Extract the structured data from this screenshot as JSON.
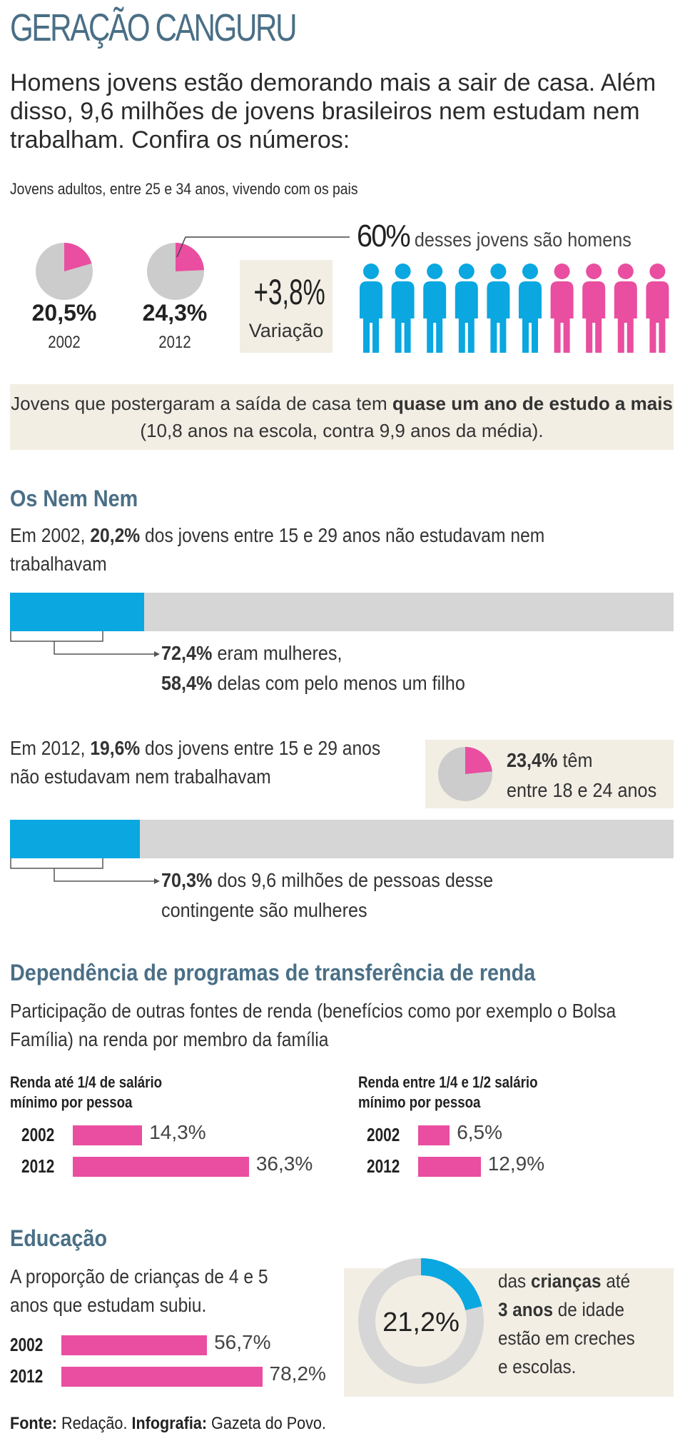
{
  "header": {
    "title": "GERAÇÃO CANGURU",
    "lead": "Homens jovens estão demorando mais a sair de casa. Além disso, 9,6 milhões de jovens brasileiros nem estudam nem trabalham. Confira os números:"
  },
  "living_with_parents": {
    "subtitle": "Jovens adultos, entre 25 e 34 anos, vivendo com os pais",
    "pie_2002": {
      "value": "20,5%",
      "year": "2002"
    },
    "pie_2012": {
      "value": "24,3%",
      "year": "2012"
    },
    "variation": {
      "value": "+3,8%",
      "label": "Variação"
    },
    "men_pct": "60%",
    "men_text": "desses jovens são homens"
  },
  "study_note": {
    "part1": "Jovens que postergaram a saída de casa tem ",
    "bold": "quase um ano de estudo a mais",
    "part2": " (10,8 anos na escola, contra 9,9 anos da média)."
  },
  "nem_nem": {
    "title": "Os Nem Nem",
    "s2002": {
      "pre": "Em 2002, ",
      "bold": "20,2%",
      "post": " dos jovens entre 15 e 29 anos não estudavam nem trabalhavam"
    },
    "note2002_a_bold": "72,4%",
    "note2002_a": " eram mulheres,",
    "note2002_b_bold": "58,4%",
    "note2002_b": " delas com pelo menos um filho",
    "s2012": {
      "pre": "Em 2012, ",
      "bold": "19,6%",
      "post": " dos jovens entre 15 e 29 anos não estudavam nem trabalhavam"
    },
    "age_pct": "23,4%",
    "age_text1": " têm",
    "age_text2": "entre 18 e 24 anos",
    "note2012_bold": "70,3%",
    "note2012_a": " dos 9,6 milhões de pessoas desse",
    "note2012_b": "contingente são mulheres"
  },
  "dependencia": {
    "title": "Dependência de programas de transferência de renda",
    "desc": "Participação de outras fontes de renda (benefícios como por exemplo o Bolsa Família) na renda por membro da família",
    "left_head": "Renda até 1/4 de salário mínimo por pessoa",
    "right_head": "Renda entre 1/4 e 1/2 salário mínimo por pessoa"
  },
  "educacao": {
    "title": "Educação",
    "desc": "A proporção de crianças de 4 e 5 anos que estudam subiu.",
    "donut_value": "21,2%",
    "donut_t1": "das ",
    "donut_b1": "crianças",
    "donut_t2": " até",
    "donut_b2": "3 anos",
    "donut_t3": " de idade",
    "donut_t4": "estão em creches",
    "donut_t5": "e escolas."
  },
  "footer": {
    "fonte_label": "Fonte:",
    "fonte": " Redação. ",
    "info_label": "Infografia:",
    "info": " Gazeta do Povo."
  },
  "colors": {
    "blue": "#0aa7e1",
    "pink": "#e94ea0",
    "grey": "#d6d6d6",
    "beige": "#f2eee4",
    "title": "#4a6f86"
  },
  "chart_data": [
    {
      "type": "pie",
      "name": "2002",
      "values": [
        20.5,
        79.5
      ],
      "labels": [
        "20,5%",
        ""
      ]
    },
    {
      "type": "pie",
      "name": "2012",
      "values": [
        24.3,
        75.7
      ],
      "labels": [
        "24,3%",
        ""
      ]
    },
    {
      "type": "pictogram",
      "men": 6,
      "women": 4,
      "men_pct": 60
    },
    {
      "type": "bar",
      "orientation": "horizontal",
      "year": "2002",
      "values": [
        20.2
      ],
      "max": 100
    },
    {
      "type": "pie",
      "values": [
        23.4,
        76.6
      ],
      "labels": [
        "23,4%",
        ""
      ]
    },
    {
      "type": "bar",
      "orientation": "horizontal",
      "year": "2012",
      "values": [
        19.6
      ],
      "max": 100
    },
    {
      "type": "bar",
      "orientation": "horizontal",
      "group": "Renda até 1/4 de salário mínimo por pessoa",
      "categories": [
        "2002",
        "2012"
      ],
      "values": [
        14.3,
        36.3
      ],
      "labels": [
        "14,3%",
        "36,3%"
      ]
    },
    {
      "type": "bar",
      "orientation": "horizontal",
      "group": "Renda entre 1/4 e 1/2 salário mínimo por pessoa",
      "categories": [
        "2002",
        "2012"
      ],
      "values": [
        6.5,
        12.9
      ],
      "labels": [
        "6,5%",
        "12,9%"
      ]
    },
    {
      "type": "bar",
      "orientation": "horizontal",
      "group": "Educação",
      "categories": [
        "2002",
        "2012"
      ],
      "values": [
        56.7,
        78.2
      ],
      "labels": [
        "56,7%",
        "78,2%"
      ]
    },
    {
      "type": "pie",
      "donut": true,
      "values": [
        21.2,
        78.8
      ],
      "labels": [
        "21,2%",
        ""
      ]
    }
  ]
}
